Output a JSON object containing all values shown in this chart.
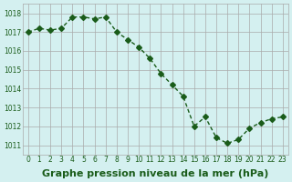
{
  "x": [
    0,
    1,
    2,
    3,
    4,
    5,
    6,
    7,
    8,
    9,
    10,
    11,
    12,
    13,
    14,
    15,
    16,
    17,
    18,
    19,
    20,
    21,
    22,
    23
  ],
  "y": [
    1017.0,
    1017.2,
    1017.1,
    1017.2,
    1017.8,
    1017.8,
    1017.7,
    1017.8,
    1017.0,
    1016.6,
    1016.2,
    1015.6,
    1014.8,
    1014.2,
    1013.6,
    1012.0,
    1012.5,
    1011.4,
    1011.1,
    1011.3,
    1011.9,
    1012.2,
    1012.4,
    1012.5
  ],
  "line_color": "#1a5c1a",
  "marker": "D",
  "markersize": 3,
  "bg_color": "#d4f0f0",
  "grid_color": "#aaaaaa",
  "xlabel": "Graphe pression niveau de la mer (hPa)",
  "xlabel_fontsize": 8,
  "xlabel_color": "#1a5c1a",
  "xlabel_bold": true,
  "ytick_labels": [
    "1011",
    "1012",
    "1013",
    "1014",
    "1015",
    "1016",
    "1017",
    "1018"
  ],
  "ylim": [
    1010.5,
    1018.5
  ],
  "xlim": [
    -0.5,
    23.5
  ],
  "title_fontsize": 9
}
